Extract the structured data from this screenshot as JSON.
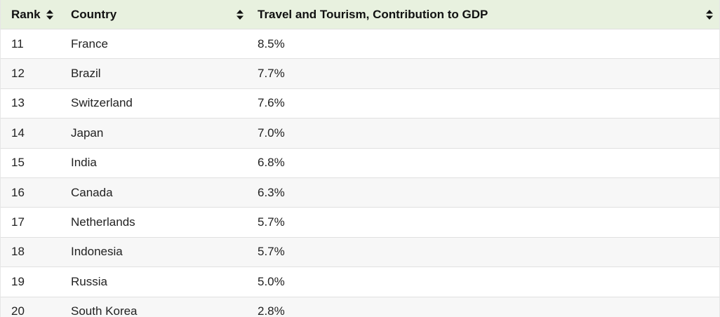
{
  "table": {
    "headers": {
      "rank": "Rank",
      "country": "Country",
      "value": "Travel and Tourism, Contribution to GDP"
    },
    "rows": [
      {
        "rank": "11",
        "country": "France",
        "value": "8.5%"
      },
      {
        "rank": "12",
        "country": "Brazil",
        "value": "7.7%"
      },
      {
        "rank": "13",
        "country": "Switzerland",
        "value": "7.6%"
      },
      {
        "rank": "14",
        "country": "Japan",
        "value": "7.0%"
      },
      {
        "rank": "15",
        "country": "India",
        "value": "6.8%"
      },
      {
        "rank": "16",
        "country": "Canada",
        "value": "6.3%"
      },
      {
        "rank": "17",
        "country": "Netherlands",
        "value": "5.7%"
      },
      {
        "rank": "18",
        "country": "Indonesia",
        "value": "5.7%"
      },
      {
        "rank": "19",
        "country": "Russia",
        "value": "5.0%"
      },
      {
        "rank": "20",
        "country": "South Korea",
        "value": "2.8%"
      }
    ]
  },
  "icons": {
    "sort": "sort-updown-icon"
  },
  "colors": {
    "header_bg": "#e8f1df",
    "row_alt_bg": "#f7f7f7",
    "border": "#e0e0e0"
  }
}
